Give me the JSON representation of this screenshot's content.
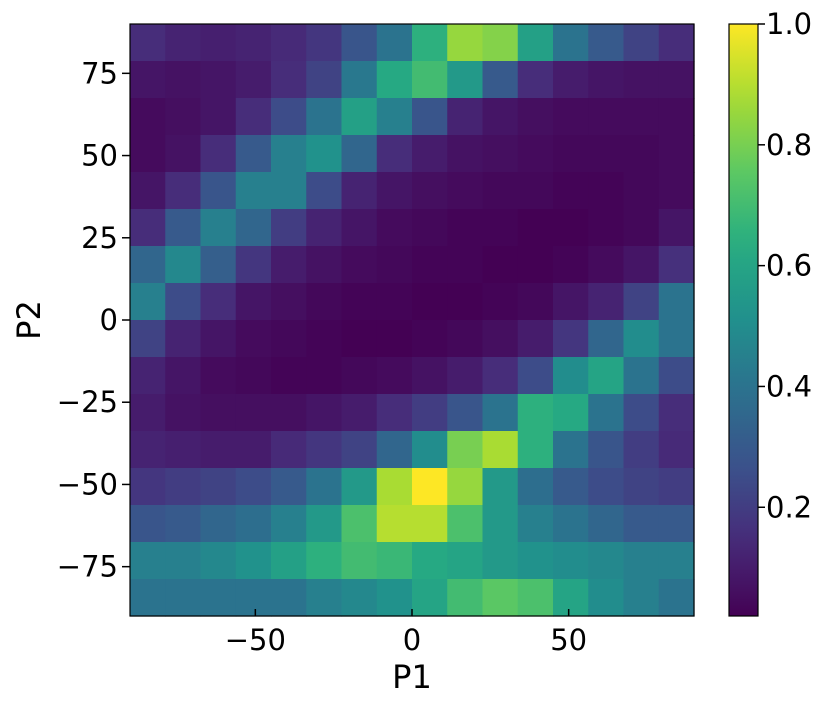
{
  "chart_data": {
    "type": "heatmap",
    "title": "",
    "xlabel": "P1",
    "ylabel": "P2",
    "xlim": [
      -90,
      90
    ],
    "ylim": [
      -90,
      90
    ],
    "x_bin_edges": [
      -90,
      -78.75,
      -67.5,
      -56.25,
      -45,
      -33.75,
      -22.5,
      -11.25,
      0,
      11.25,
      22.5,
      33.75,
      45,
      56.25,
      67.5,
      78.75,
      90
    ],
    "y_bin_edges": [
      -90,
      -78.75,
      -67.5,
      -56.25,
      -45,
      -33.75,
      -22.5,
      -11.25,
      0,
      11.25,
      22.5,
      33.75,
      45,
      56.25,
      67.5,
      78.75,
      90
    ],
    "x_ticks": [
      -50,
      0,
      50
    ],
    "x_tick_labels": [
      "−50",
      "0",
      "50"
    ],
    "y_ticks": [
      -75,
      -50,
      -25,
      0,
      25,
      50,
      75
    ],
    "y_tick_labels": [
      "−75",
      "−50",
      "−25",
      "0",
      "25",
      "50",
      "75"
    ],
    "colormap": "viridis",
    "colorbar": {
      "range": [
        0.02,
        1.0
      ],
      "ticks": [
        0.2,
        0.4,
        0.6,
        0.8,
        1.0
      ],
      "tick_labels": [
        "0.2",
        "0.4",
        "0.6",
        "0.8",
        "1.0"
      ]
    },
    "grid": false,
    "values_rows_top_to_bottom": [
      [
        0.15,
        0.12,
        0.11,
        0.12,
        0.14,
        0.18,
        0.28,
        0.4,
        0.65,
        0.85,
        0.82,
        0.58,
        0.4,
        0.3,
        0.22,
        0.15
      ],
      [
        0.08,
        0.07,
        0.08,
        0.1,
        0.15,
        0.22,
        0.42,
        0.62,
        0.7,
        0.55,
        0.3,
        0.15,
        0.1,
        0.08,
        0.07,
        0.07
      ],
      [
        0.05,
        0.06,
        0.08,
        0.15,
        0.25,
        0.4,
        0.58,
        0.45,
        0.28,
        0.12,
        0.08,
        0.06,
        0.05,
        0.05,
        0.05,
        0.05
      ],
      [
        0.05,
        0.07,
        0.15,
        0.3,
        0.45,
        0.52,
        0.35,
        0.15,
        0.1,
        0.07,
        0.06,
        0.05,
        0.04,
        0.04,
        0.04,
        0.05
      ],
      [
        0.08,
        0.15,
        0.28,
        0.45,
        0.45,
        0.25,
        0.12,
        0.08,
        0.06,
        0.05,
        0.04,
        0.04,
        0.03,
        0.03,
        0.04,
        0.05
      ],
      [
        0.15,
        0.3,
        0.45,
        0.35,
        0.2,
        0.12,
        0.08,
        0.05,
        0.04,
        0.03,
        0.03,
        0.02,
        0.02,
        0.03,
        0.04,
        0.08
      ],
      [
        0.35,
        0.48,
        0.32,
        0.18,
        0.1,
        0.07,
        0.05,
        0.04,
        0.03,
        0.03,
        0.02,
        0.02,
        0.03,
        0.05,
        0.08,
        0.16
      ],
      [
        0.45,
        0.25,
        0.15,
        0.08,
        0.06,
        0.04,
        0.03,
        0.03,
        0.02,
        0.02,
        0.03,
        0.04,
        0.08,
        0.12,
        0.22,
        0.4
      ],
      [
        0.22,
        0.12,
        0.08,
        0.05,
        0.04,
        0.03,
        0.02,
        0.02,
        0.03,
        0.04,
        0.06,
        0.1,
        0.18,
        0.35,
        0.5,
        0.4
      ],
      [
        0.12,
        0.08,
        0.05,
        0.04,
        0.03,
        0.03,
        0.04,
        0.05,
        0.07,
        0.1,
        0.15,
        0.25,
        0.5,
        0.6,
        0.4,
        0.25
      ],
      [
        0.1,
        0.07,
        0.06,
        0.06,
        0.06,
        0.08,
        0.1,
        0.15,
        0.2,
        0.28,
        0.4,
        0.65,
        0.62,
        0.4,
        0.25,
        0.15
      ],
      [
        0.12,
        0.11,
        0.1,
        0.1,
        0.14,
        0.18,
        0.22,
        0.35,
        0.5,
        0.8,
        0.88,
        0.65,
        0.4,
        0.28,
        0.2,
        0.14
      ],
      [
        0.18,
        0.2,
        0.22,
        0.25,
        0.3,
        0.4,
        0.55,
        0.88,
        1.0,
        0.85,
        0.55,
        0.38,
        0.3,
        0.25,
        0.22,
        0.2
      ],
      [
        0.28,
        0.3,
        0.35,
        0.38,
        0.45,
        0.55,
        0.72,
        0.9,
        0.9,
        0.72,
        0.55,
        0.45,
        0.4,
        0.35,
        0.3,
        0.3
      ],
      [
        0.45,
        0.45,
        0.48,
        0.52,
        0.58,
        0.65,
        0.7,
        0.68,
        0.62,
        0.6,
        0.55,
        0.52,
        0.5,
        0.48,
        0.45,
        0.45
      ],
      [
        0.4,
        0.4,
        0.4,
        0.4,
        0.4,
        0.45,
        0.48,
        0.52,
        0.6,
        0.7,
        0.75,
        0.72,
        0.6,
        0.5,
        0.45,
        0.4
      ]
    ]
  }
}
